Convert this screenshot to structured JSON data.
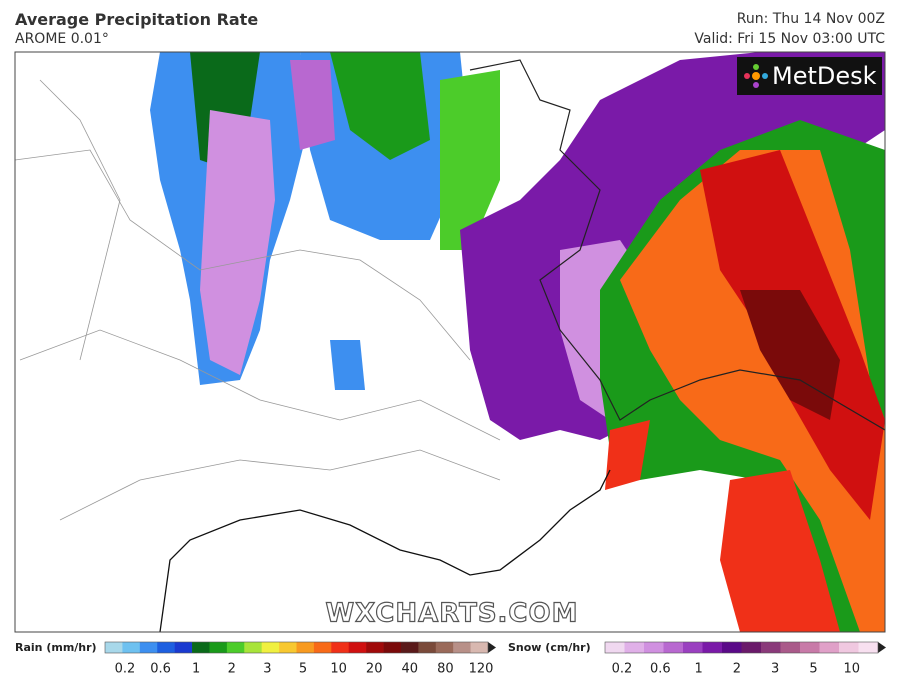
{
  "header": {
    "title": "Average Precipitation Rate",
    "subtitle": "AROME 0.01°",
    "run": "Run: Thu 14 Nov 00Z",
    "valid": "Valid: Fri 15 Nov 03:00 UTC"
  },
  "map": {
    "logo": "MetDesk",
    "watermark": "WXCHARTS.COM"
  },
  "legend": {
    "rain": {
      "label": "Rain (mm/hr)",
      "ticks": [
        0.2,
        0.6,
        1,
        2,
        3,
        5,
        10,
        20,
        40,
        80,
        120
      ],
      "colors": [
        "#a8d8ea",
        "#6ec1f0",
        "#3d8ff0",
        "#1d5fe0",
        "#1a3ad0",
        "#0a6a1a",
        "#1a9a1a",
        "#4ccc2a",
        "#a8e43a",
        "#f0f040",
        "#f8c830",
        "#f89a20",
        "#f86a18",
        "#f03018",
        "#d01010",
        "#a00a0a",
        "#7a0a0a",
        "#5a1a1a",
        "#7a4a3a",
        "#9a6a5a",
        "#b89088",
        "#d8b8b0"
      ]
    },
    "snow": {
      "label": "Snow (cm/hr)",
      "ticks": [
        0.2,
        0.6,
        1,
        2,
        3,
        5,
        10
      ],
      "colors": [
        "#f0d8f0",
        "#e0b0e8",
        "#d090e0",
        "#b868d0",
        "#9a40c0",
        "#7a1aa8",
        "#5a0a88",
        "#6a1a6a",
        "#8a3a7a",
        "#aa5a8a",
        "#c87aa8",
        "#e0a0c8",
        "#f0c8e0",
        "#f8e0f0"
      ]
    }
  }
}
